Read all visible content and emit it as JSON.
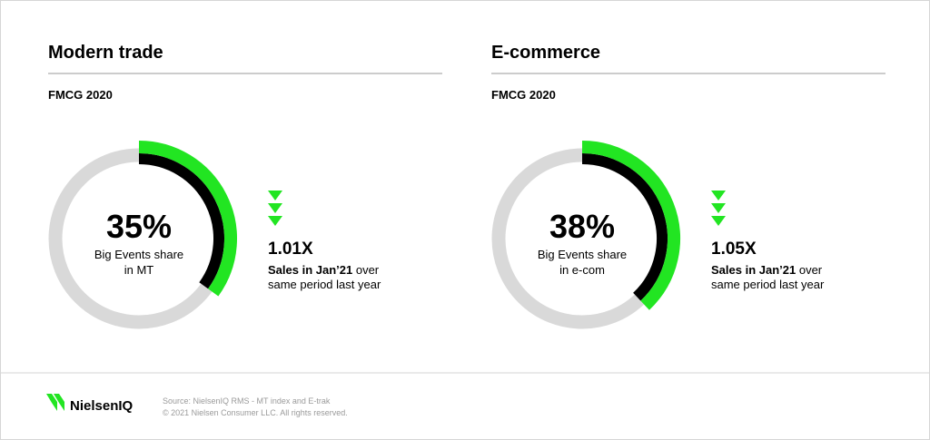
{
  "chart_data": [
    {
      "type": "donut",
      "title": "Modern trade",
      "subtitle": "FMCG 2020",
      "values": [
        35
      ],
      "value_labels": [
        "35%"
      ],
      "caption": [
        "Big Events share",
        "in MT"
      ],
      "color": "#22e522",
      "ring_color": "#000000",
      "track_color": "#d9d9d9",
      "multiplier": "1.01X",
      "note_bold": "Sales in Jan’21",
      "note": " over same period last year"
    },
    {
      "type": "donut",
      "title": "E-commerce",
      "subtitle": "FMCG 2020",
      "values": [
        38
      ],
      "value_labels": [
        "38%"
      ],
      "caption": [
        "Big Events share",
        "in e-com"
      ],
      "color": "#22e522",
      "ring_color": "#000000",
      "track_color": "#d9d9d9",
      "multiplier": "1.05X",
      "note_bold": "Sales in Jan’21",
      "note": " over same period last year"
    }
  ],
  "footer": {
    "logo": "NielsenIQ",
    "source": [
      "Source: NielsenIQ RMS - MT index and E-trak",
      "© 2021 Nielsen Consumer LLC. All rights reserved."
    ]
  }
}
